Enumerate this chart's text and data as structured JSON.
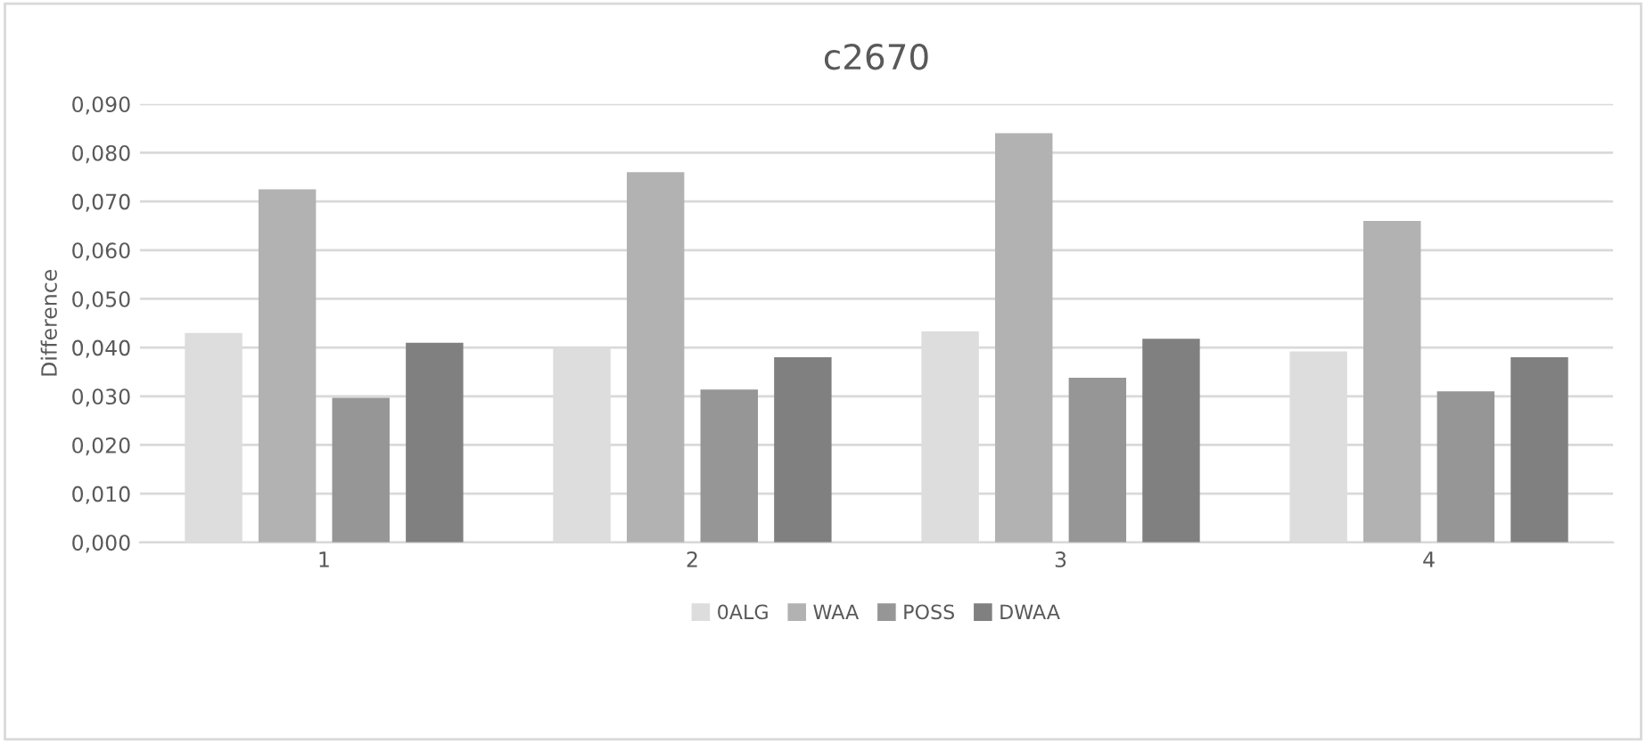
{
  "chart_data": {
    "type": "bar",
    "title": "c2670",
    "ylabel": "Difference",
    "categories": [
      "1",
      "2",
      "3",
      "4"
    ],
    "series": [
      {
        "name": "0ALG",
        "color": "#dddddd",
        "values": [
          0.043,
          0.04,
          0.0433,
          0.0392
        ]
      },
      {
        "name": "WAA",
        "color": "#b2b2b2",
        "values": [
          0.0725,
          0.076,
          0.084,
          0.066
        ]
      },
      {
        "name": "POSS",
        "color": "#969696",
        "values": [
          0.0297,
          0.0314,
          0.0338,
          0.031
        ]
      },
      {
        "name": "DWAA",
        "color": "#808080",
        "values": [
          0.041,
          0.038,
          0.0418,
          0.038
        ]
      }
    ],
    "ylim": [
      0,
      0.09
    ],
    "yticks": [
      {
        "value": 0,
        "label": "0,000"
      },
      {
        "value": 0.01,
        "label": "0,010"
      },
      {
        "value": 0.02,
        "label": "0,020"
      },
      {
        "value": 0.03,
        "label": "0,030"
      },
      {
        "value": 0.04,
        "label": "0,040"
      },
      {
        "value": 0.05,
        "label": "0,050"
      },
      {
        "value": 0.06,
        "label": "0,060"
      },
      {
        "value": 0.07,
        "label": "0,070"
      },
      {
        "value": 0.08,
        "label": "0,080"
      },
      {
        "value": 0.09,
        "label": "0,090"
      }
    ],
    "grid": "y",
    "legend": "bottom"
  }
}
